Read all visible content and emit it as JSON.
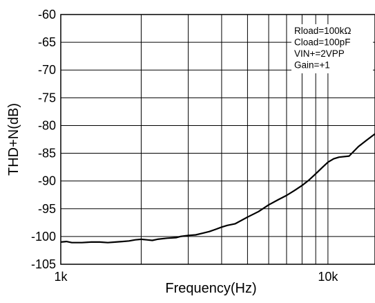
{
  "chart_data": {
    "type": "line",
    "title": "",
    "xlabel": "Frequency(Hz)",
    "ylabel": "THD+N(dB)",
    "x_scale": "log",
    "xlim": [
      1000,
      15000
    ],
    "ylim": [
      -105,
      -60
    ],
    "grid": true,
    "x_ticks": [
      {
        "value": 1000,
        "label": "1k"
      },
      {
        "value": 10000,
        "label": "10k"
      }
    ],
    "x_minor_gridlines": [
      2000,
      3000,
      4000,
      5000,
      6000,
      7000,
      8000,
      9000
    ],
    "y_ticks": [
      {
        "value": -60,
        "label": "-60"
      },
      {
        "value": -65,
        "label": "-65"
      },
      {
        "value": -70,
        "label": "-70"
      },
      {
        "value": -75,
        "label": "-75"
      },
      {
        "value": -80,
        "label": "-80"
      },
      {
        "value": -85,
        "label": "-85"
      },
      {
        "value": -90,
        "label": "-90"
      },
      {
        "value": -95,
        "label": "-95"
      },
      {
        "value": -100,
        "label": "-100"
      },
      {
        "value": -105,
        "label": "-105"
      }
    ],
    "annotations": [
      "Rload=100kΩ",
      "Cload=100pF",
      "VIN+=2VPP",
      "Gain=+1"
    ],
    "series": [
      {
        "x": [
          1000,
          1050,
          1100,
          1200,
          1300,
          1400,
          1500,
          1600,
          1700,
          1800,
          1900,
          2000,
          2100,
          2200,
          2300,
          2500,
          2700,
          2800,
          3000,
          3200,
          3400,
          3600,
          3800,
          4000,
          4200,
          4500,
          5000,
          5500,
          6000,
          6500,
          7000,
          7500,
          8000,
          8500,
          9000,
          9500,
          10000,
          10500,
          11000,
          12000,
          13000,
          14000,
          15000
        ],
        "y": [
          -101.0,
          -100.9,
          -101.1,
          -101.1,
          -101.0,
          -101.0,
          -101.1,
          -101.0,
          -100.9,
          -100.8,
          -100.6,
          -100.5,
          -100.6,
          -100.7,
          -100.5,
          -100.3,
          -100.2,
          -100.0,
          -99.8,
          -99.7,
          -99.4,
          -99.1,
          -98.7,
          -98.3,
          -98.0,
          -97.7,
          -96.5,
          -95.5,
          -94.3,
          -93.4,
          -92.6,
          -91.7,
          -90.8,
          -89.8,
          -88.7,
          -87.6,
          -86.6,
          -86.0,
          -85.7,
          -85.5,
          -83.8,
          -82.6,
          -81.5
        ]
      }
    ]
  }
}
